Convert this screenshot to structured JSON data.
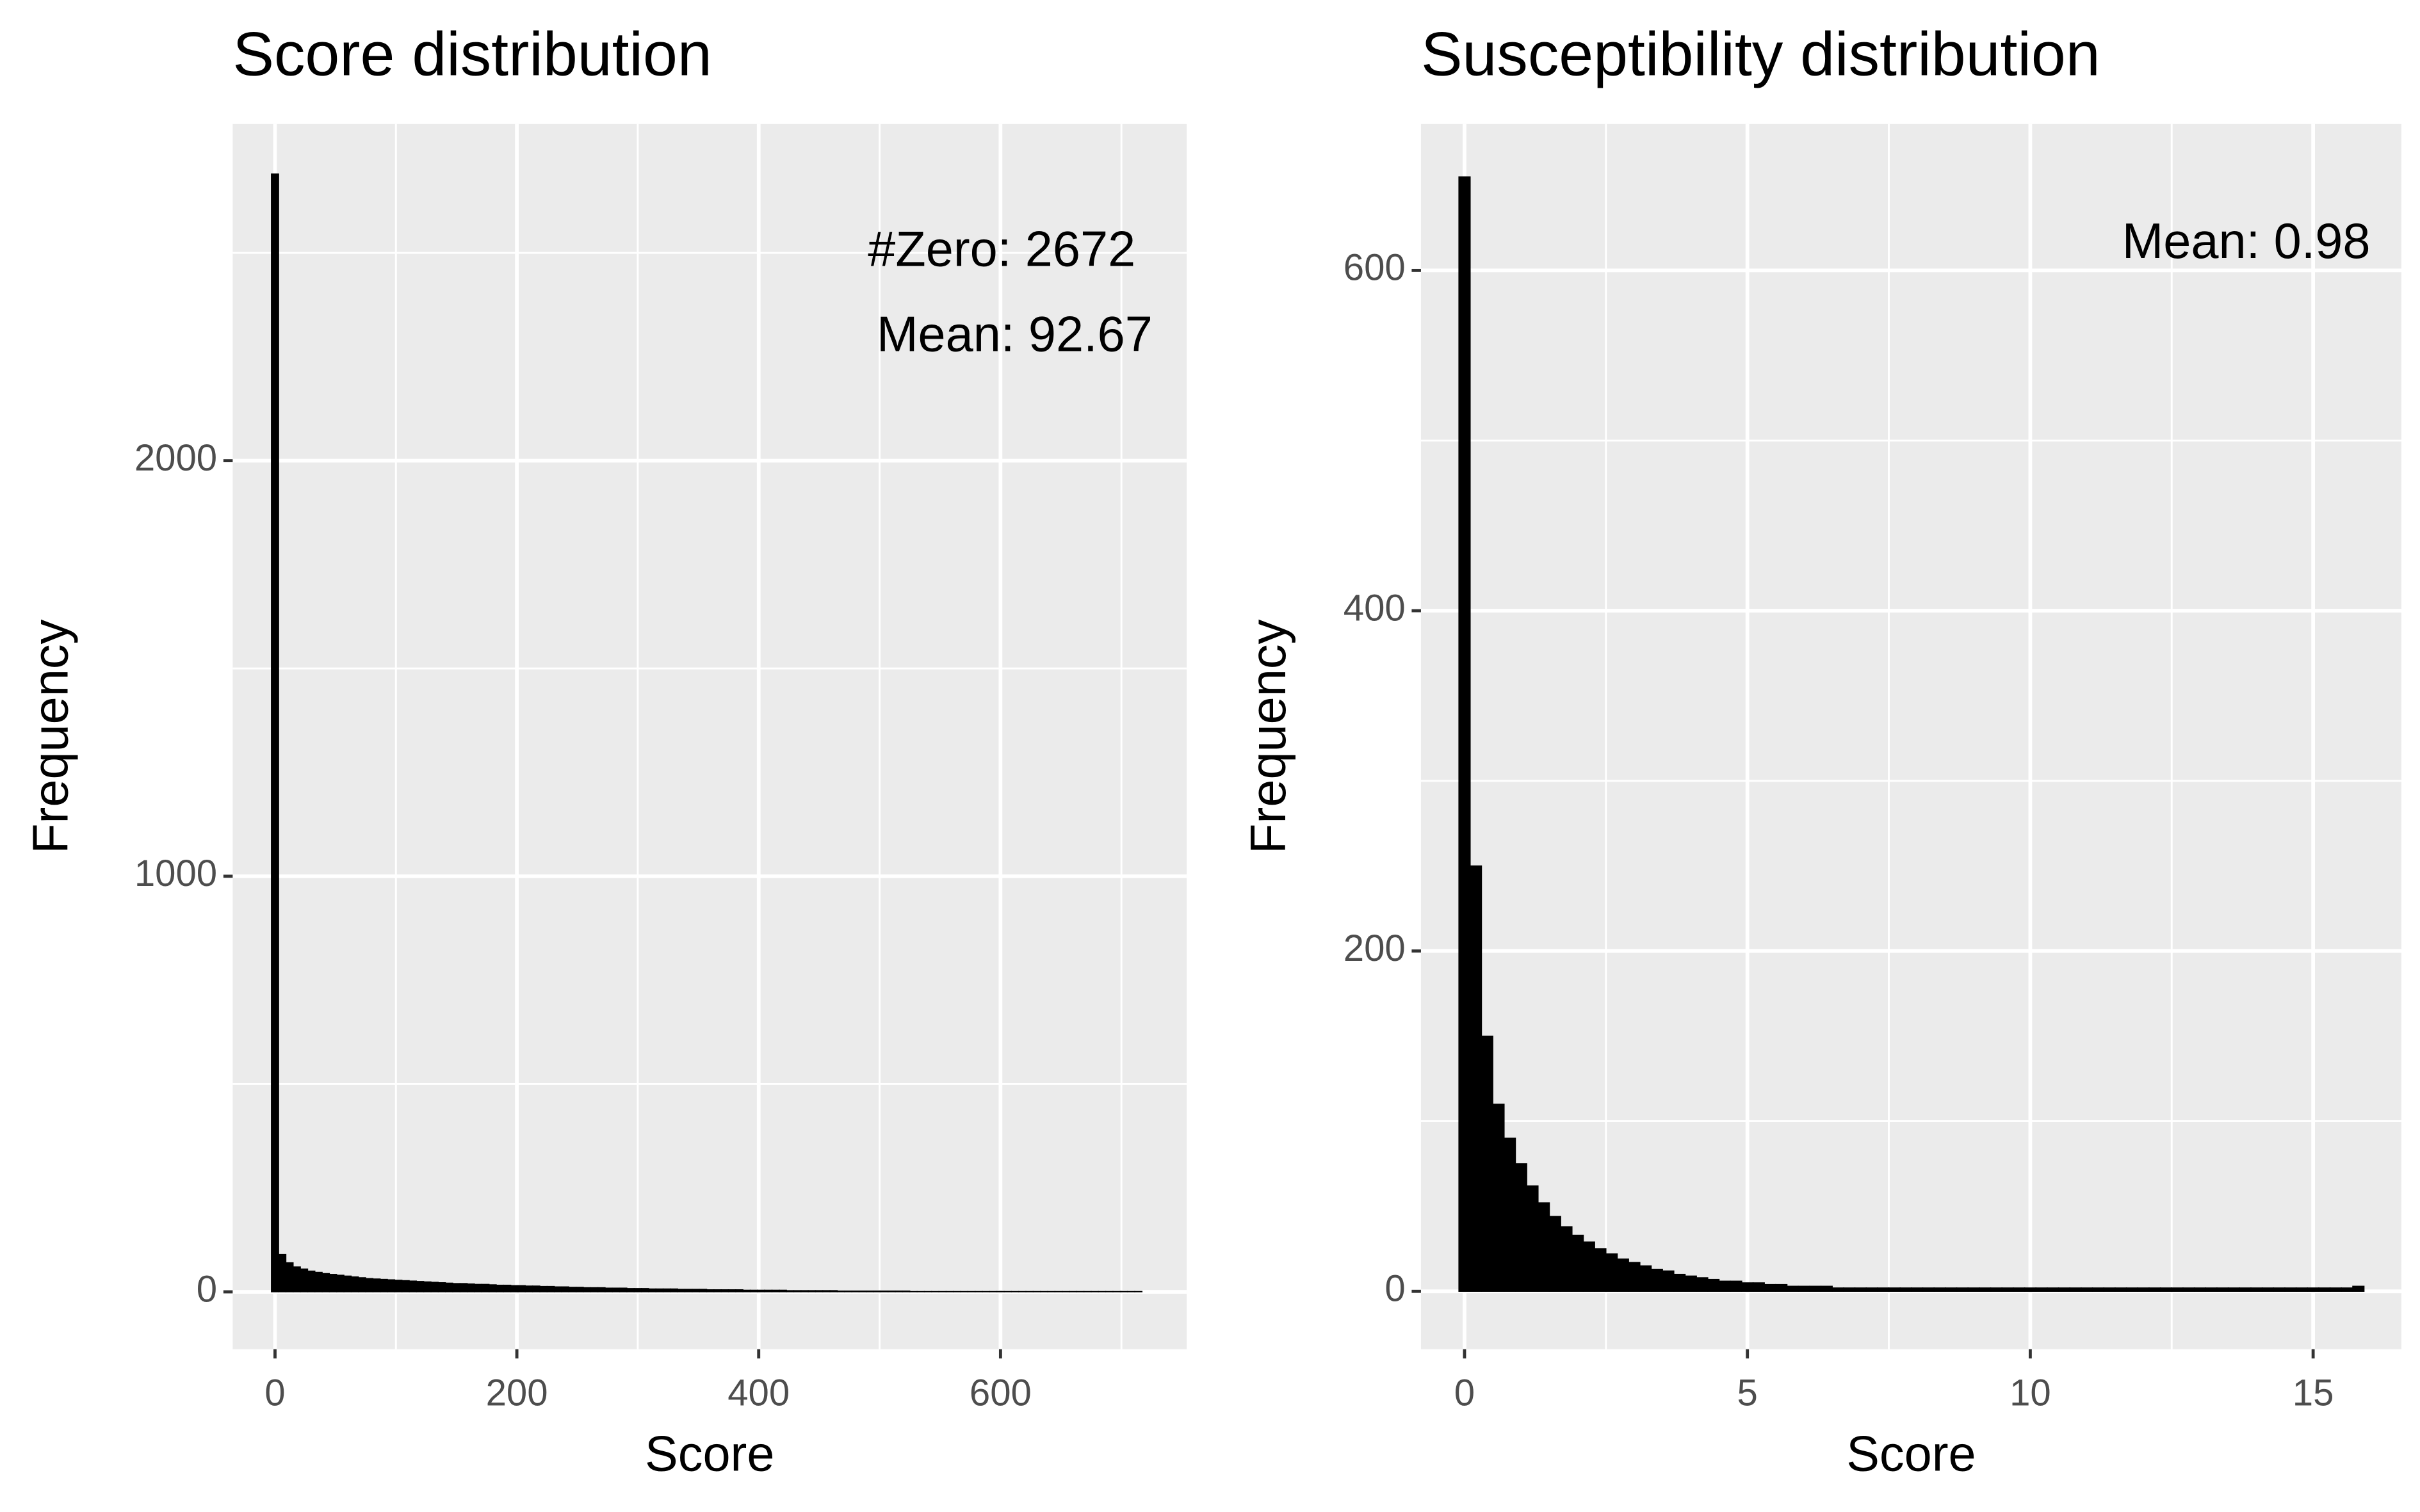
{
  "chart_data": [
    {
      "type": "histogram",
      "title": "Score distribution",
      "x_label": "Score",
      "y_label": "Frequency",
      "annotations": [
        "#Zero: 2672",
        "Mean: 92.67"
      ],
      "color": "#000000",
      "background": "#ebebeb",
      "grid": true,
      "xlim": [
        -35,
        754
      ],
      "ylim": [
        -138,
        2810
      ],
      "xticks": [
        0,
        200,
        400,
        600
      ],
      "yticks": [
        0,
        1000,
        2000
      ],
      "xminor_ticks": [
        100,
        300,
        500,
        700
      ],
      "yminor_ticks": [
        500,
        1500,
        2500
      ],
      "bins": [
        -3,
        3,
        9,
        15,
        21,
        27,
        33,
        39,
        45,
        51,
        57,
        63,
        69,
        75,
        81,
        87,
        93,
        99,
        105,
        111,
        117,
        123,
        129,
        135,
        141,
        147,
        153,
        159,
        165,
        171,
        177,
        183,
        189,
        195,
        201,
        207,
        213,
        219,
        225,
        231,
        237,
        243,
        249,
        255,
        261,
        267,
        273,
        279,
        285,
        291,
        297,
        303,
        309,
        315,
        321,
        327,
        333,
        339,
        345,
        351,
        357,
        363,
        369,
        375,
        381,
        387,
        393,
        399,
        405,
        411,
        417,
        423,
        429,
        435,
        441,
        447,
        453,
        459,
        465,
        471,
        477,
        483,
        489,
        495,
        501,
        507,
        513,
        519,
        525,
        531,
        537,
        543,
        549,
        555,
        561,
        567,
        573,
        579,
        585,
        591,
        597,
        603,
        609,
        615,
        621,
        627,
        633,
        639,
        645,
        651,
        657,
        663,
        669,
        675,
        681,
        687,
        693,
        699,
        705,
        711,
        717
      ],
      "counts": [
        2690,
        90,
        70,
        60,
        55,
        50,
        47,
        44,
        42,
        40,
        38,
        36,
        34,
        32,
        31,
        30,
        29,
        28,
        27,
        26,
        25,
        24,
        23,
        22,
        21,
        20,
        20,
        19,
        18,
        18,
        17,
        16,
        16,
        15,
        15,
        14,
        14,
        13,
        13,
        12,
        12,
        11,
        11,
        10,
        10,
        10,
        9,
        9,
        9,
        8,
        8,
        8,
        7,
        7,
        7,
        7,
        6,
        6,
        6,
        6,
        5,
        5,
        5,
        5,
        5,
        4,
        4,
        4,
        4,
        4,
        4,
        3,
        3,
        3,
        3,
        3,
        3,
        3,
        2,
        2,
        2,
        2,
        2,
        2,
        2,
        2,
        2,
        2,
        1,
        1,
        1,
        1,
        1,
        1,
        1,
        1,
        1,
        1,
        1,
        1,
        1,
        1,
        1,
        1,
        1,
        1,
        1,
        1,
        1,
        1,
        1,
        1,
        1,
        1,
        1,
        1,
        1,
        1,
        1,
        1
      ]
    },
    {
      "type": "histogram",
      "title": "Susceptibility distribution",
      "x_label": "Score",
      "y_label": "Frequency",
      "annotations": [
        "Mean: 0.98"
      ],
      "color": "#000000",
      "background": "#ebebeb",
      "grid": true,
      "xlim": [
        -0.77,
        16.56
      ],
      "ylim": [
        -34,
        686
      ],
      "xticks": [
        0,
        5,
        10,
        15
      ],
      "yticks": [
        0,
        200,
        400,
        600
      ],
      "xminor_ticks": [
        2.5,
        7.5,
        12.5
      ],
      "yminor_ticks": [
        100,
        300,
        500
      ],
      "bins": [
        -0.1,
        0.1,
        0.3,
        0.5,
        0.7,
        0.9,
        1.1,
        1.3,
        1.5,
        1.7,
        1.9,
        2.1,
        2.3,
        2.5,
        2.7,
        2.9,
        3.1,
        3.3,
        3.5,
        3.7,
        3.9,
        4.1,
        4.3,
        4.5,
        4.7,
        4.9,
        5.1,
        5.3,
        5.5,
        5.7,
        5.9,
        6.1,
        6.3,
        6.5,
        6.7,
        6.9,
        7.1,
        7.3,
        7.5,
        7.7,
        7.9,
        8.1,
        8.3,
        8.5,
        8.7,
        8.9,
        9.1,
        9.3,
        9.5,
        9.7,
        9.9,
        10.1,
        10.3,
        10.5,
        10.7,
        10.9,
        11.1,
        11.3,
        11.5,
        11.7,
        11.9,
        12.1,
        12.3,
        12.5,
        12.7,
        12.9,
        13.1,
        13.3,
        13.5,
        13.7,
        13.9,
        14.1,
        14.3,
        14.5,
        14.7,
        14.9,
        15.1,
        15.3,
        15.5,
        15.7,
        15.9
      ],
      "counts": [
        655,
        250,
        150,
        110,
        90,
        75,
        62,
        52,
        44,
        38,
        33,
        29,
        25,
        22,
        19,
        17,
        15,
        13,
        12,
        10,
        9,
        8,
        7,
        6,
        6,
        5,
        5,
        4,
        4,
        3,
        3,
        3,
        3,
        2,
        2,
        2,
        2,
        2,
        2,
        2,
        2,
        2,
        2,
        2,
        2,
        2,
        2,
        2,
        2,
        2,
        2,
        2,
        2,
        2,
        2,
        2,
        2,
        2,
        2,
        2,
        2,
        2,
        2,
        2,
        2,
        2,
        2,
        2,
        2,
        2,
        2,
        2,
        2,
        2,
        2,
        2,
        2,
        2,
        2,
        3
      ]
    }
  ]
}
